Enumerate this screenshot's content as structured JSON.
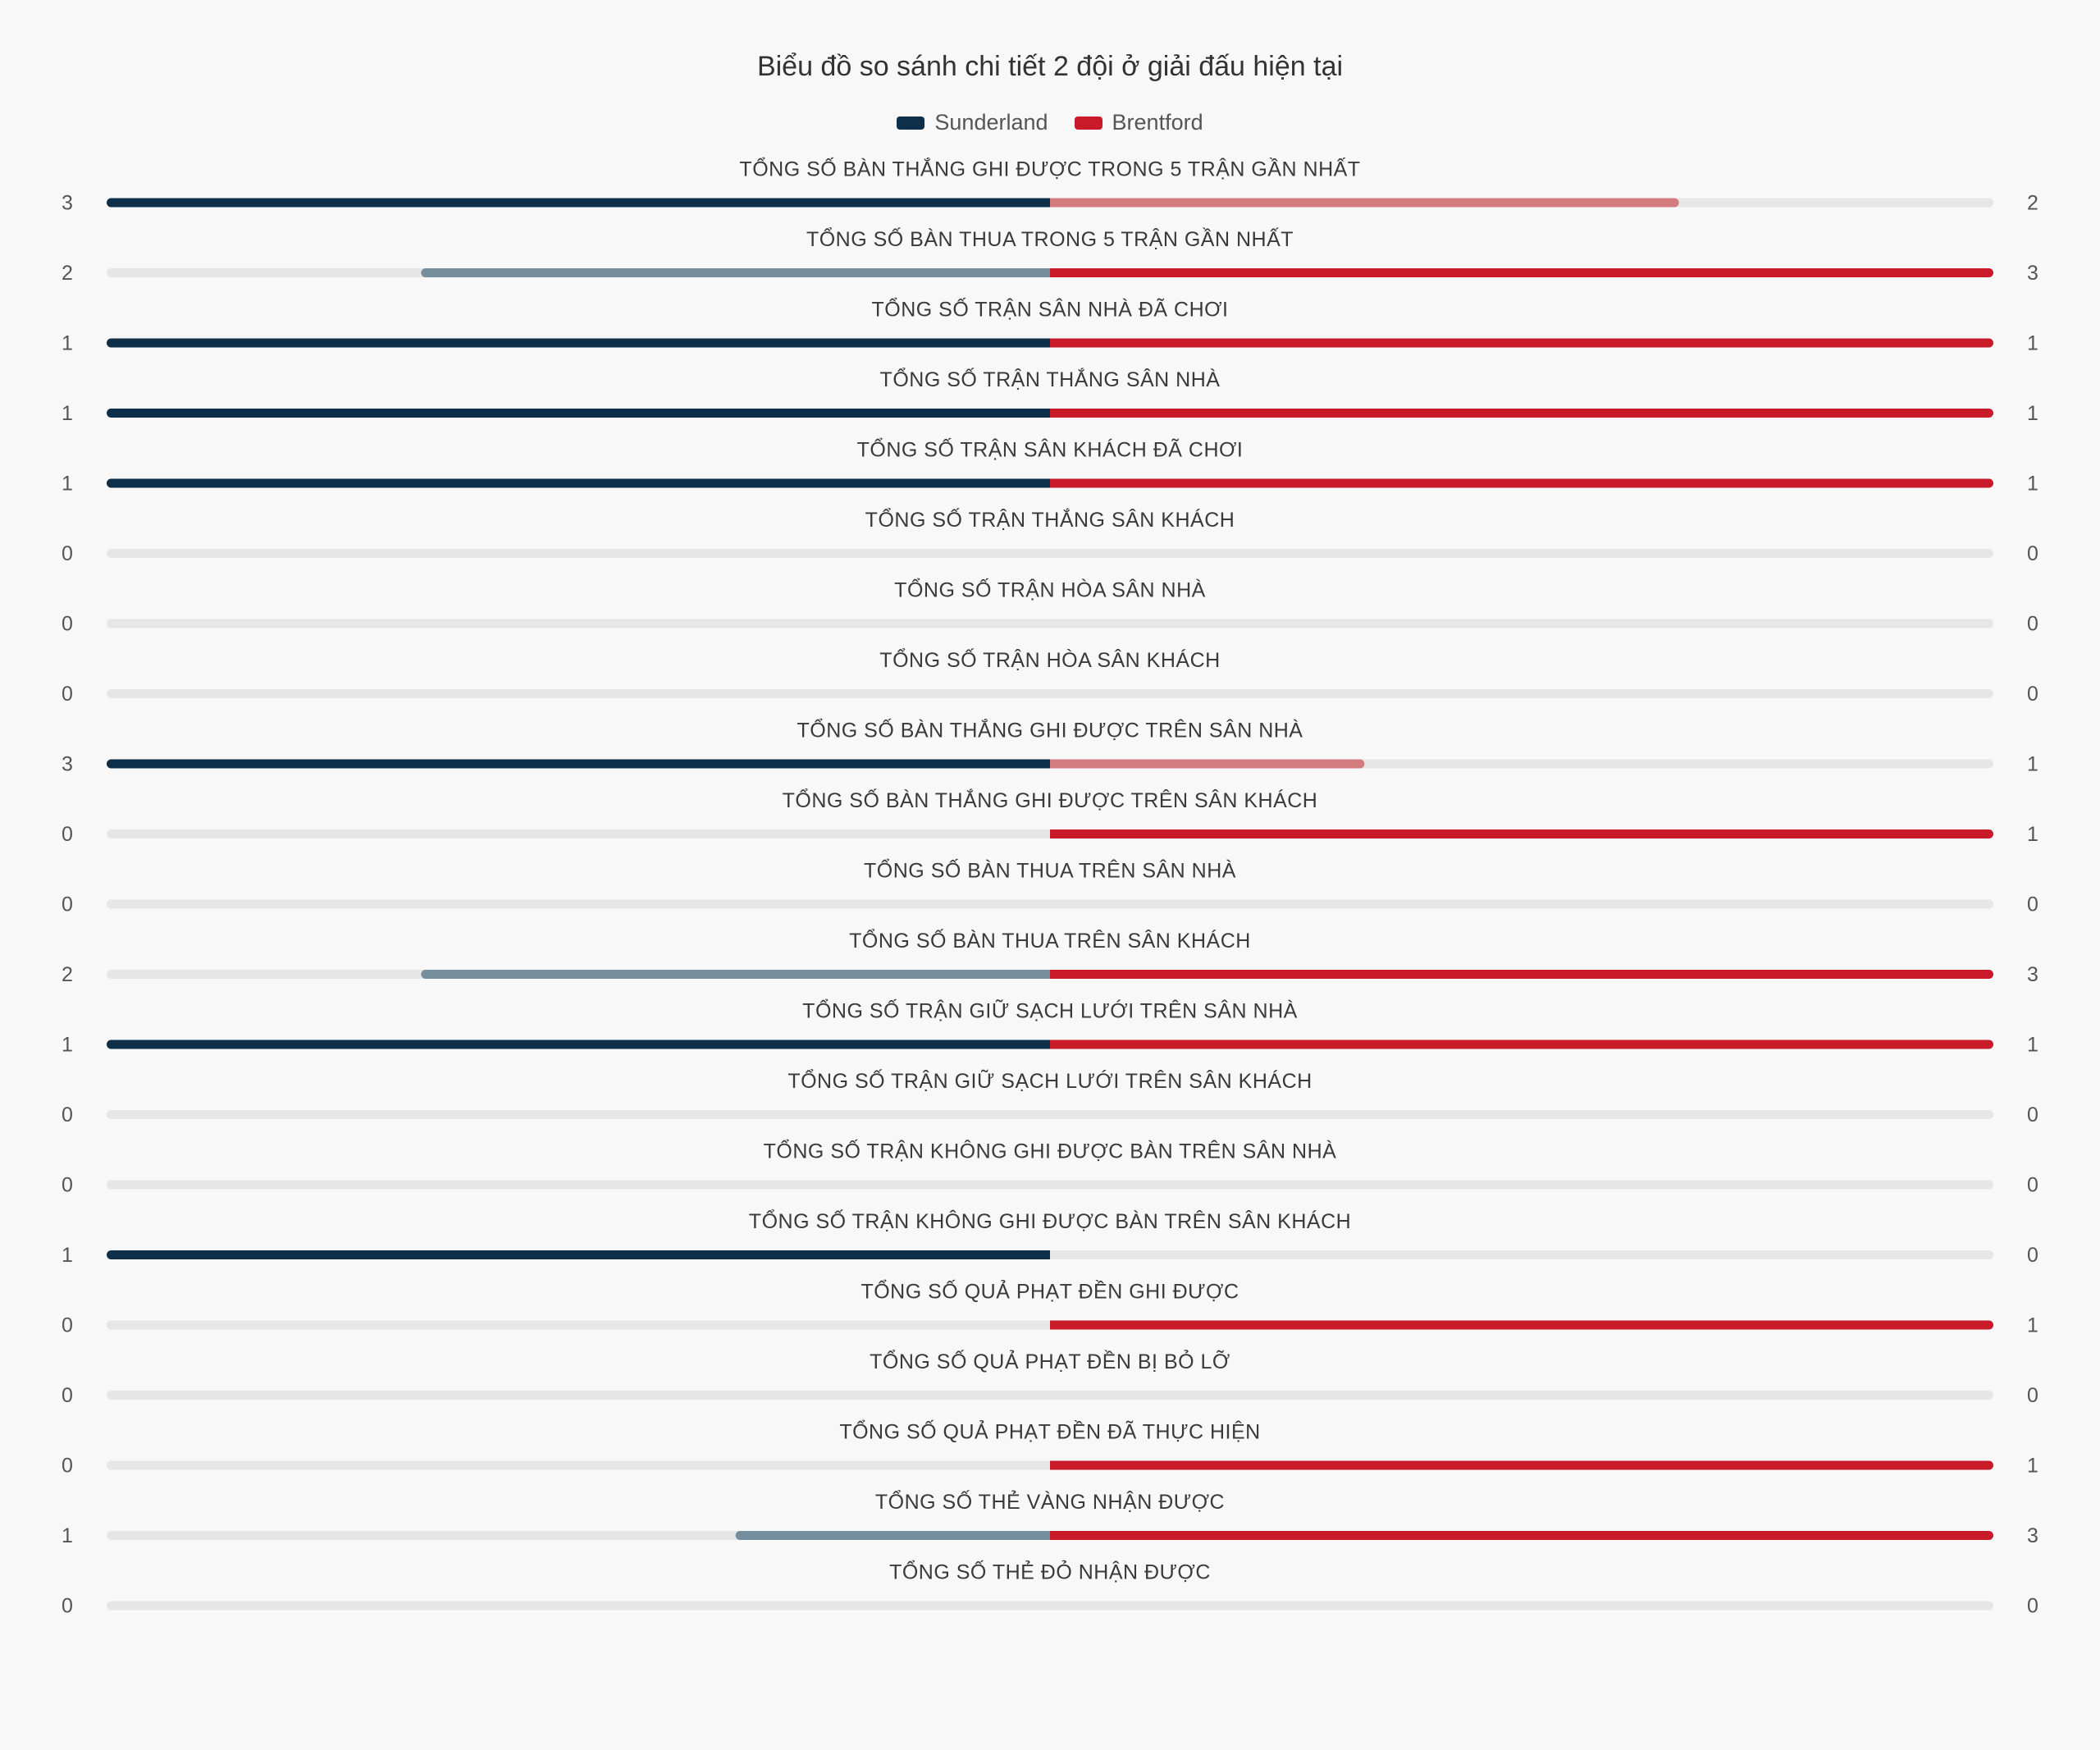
{
  "chart_data": {
    "type": "bar",
    "title": "Biểu đồ so sánh chi tiết 2 đội ở giải đấu hiện tại",
    "series": [
      {
        "name": "Sunderland",
        "color": "#0d2f4a",
        "light_color": "#748e9e"
      },
      {
        "name": "Brentford",
        "color": "#c81a28",
        "light_color": "#d47b80"
      }
    ],
    "track_color": "#e6e6e6",
    "rows": [
      {
        "label": "TỔNG SỐ BÀN THẮNG GHI ĐƯỢC TRONG 5 TRẬN GẦN NHẤT",
        "home": 3,
        "away": 2
      },
      {
        "label": "TỔNG SỐ BÀN THUA TRONG 5 TRẬN GẦN NHẤT",
        "home": 2,
        "away": 3
      },
      {
        "label": "TỔNG SỐ TRẬN SÂN NHÀ ĐÃ CHƠI",
        "home": 1,
        "away": 1
      },
      {
        "label": "TỔNG SỐ TRẬN THẮNG SÂN NHÀ",
        "home": 1,
        "away": 1
      },
      {
        "label": "TỔNG SỐ TRẬN SÂN KHÁCH ĐÃ CHƠI",
        "home": 1,
        "away": 1
      },
      {
        "label": "TỔNG SỐ TRẬN THẮNG SÂN KHÁCH",
        "home": 0,
        "away": 0
      },
      {
        "label": "TỔNG SỐ TRẬN HÒA SÂN NHÀ",
        "home": 0,
        "away": 0
      },
      {
        "label": "TỔNG SỐ TRẬN HÒA SÂN KHÁCH",
        "home": 0,
        "away": 0
      },
      {
        "label": "TỔNG SỐ BÀN THẮNG GHI ĐƯỢC TRÊN SÂN NHÀ",
        "home": 3,
        "away": 1
      },
      {
        "label": "TỔNG SỐ BÀN THẮNG GHI ĐƯỢC TRÊN SÂN KHÁCH",
        "home": 0,
        "away": 1
      },
      {
        "label": "TỔNG SỐ BÀN THUA TRÊN SÂN NHÀ",
        "home": 0,
        "away": 0
      },
      {
        "label": "TỔNG SỐ BÀN THUA TRÊN SÂN KHÁCH",
        "home": 2,
        "away": 3
      },
      {
        "label": "TỔNG SỐ TRẬN GIỮ SẠCH LƯỚI TRÊN SÂN NHÀ",
        "home": 1,
        "away": 1
      },
      {
        "label": "TỔNG SỐ TRẬN GIỮ SẠCH LƯỚI TRÊN SÂN KHÁCH",
        "home": 0,
        "away": 0
      },
      {
        "label": "TỔNG SỐ TRẬN KHÔNG GHI ĐƯỢC BÀN TRÊN SÂN NHÀ",
        "home": 0,
        "away": 0
      },
      {
        "label": "TỔNG SỐ TRẬN KHÔNG GHI ĐƯỢC BÀN TRÊN SÂN KHÁCH",
        "home": 1,
        "away": 0
      },
      {
        "label": "TỔNG SỐ QUẢ PHẠT ĐỀN GHI ĐƯỢC",
        "home": 0,
        "away": 1
      },
      {
        "label": "TỔNG SỐ QUẢ PHẠT ĐỀN BỊ BỎ LỠ",
        "home": 0,
        "away": 0
      },
      {
        "label": "TỔNG SỐ QUẢ PHẠT ĐỀN ĐÃ THỰC HIỆN",
        "home": 0,
        "away": 1
      },
      {
        "label": "TỔNG SỐ THẺ VÀNG NHẬN ĐƯỢC",
        "home": 1,
        "away": 3
      },
      {
        "label": "TỔNG SỐ THẺ ĐỎ NHẬN ĐƯỢC",
        "home": 0,
        "away": 0
      }
    ]
  }
}
